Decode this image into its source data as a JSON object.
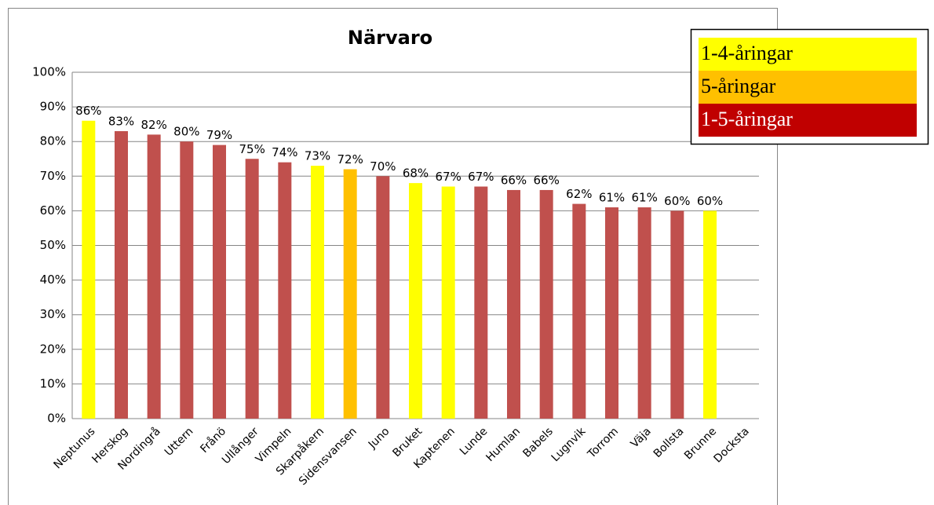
{
  "chart_data": {
    "type": "bar",
    "title": "Närvaro",
    "categories": [
      "Neptunus",
      "Herskog",
      "Nordingrå",
      "Uttern",
      "Frånö",
      "Ullånger",
      "Vimpeln",
      "Skarpåkern",
      "Sidensvansen",
      "Juno",
      "Bruket",
      "Kaptenen",
      "Lunde",
      "Humlan",
      "Babels",
      "Lugnvik",
      "Torrom",
      "Väja",
      "Bollsta",
      "Brunne",
      "Docksta"
    ],
    "values": [
      86,
      83,
      82,
      80,
      79,
      75,
      74,
      73,
      72,
      70,
      68,
      67,
      67,
      66,
      66,
      62,
      61,
      61,
      60,
      60,
      null
    ],
    "value_labels": [
      "86%",
      "83%",
      "82%",
      "80%",
      "79%",
      "75%",
      "74%",
      "73%",
      "72%",
      "70%",
      "68%",
      "67%",
      "67%",
      "66%",
      "66%",
      "62%",
      "61%",
      "61%",
      "60%",
      "60%",
      null
    ],
    "colors": [
      "#ffff00",
      "#c0504d",
      "#c0504d",
      "#c0504d",
      "#c0504d",
      "#c0504d",
      "#c0504d",
      "#ffff00",
      "#ffc000",
      "#c0504d",
      "#ffff00",
      "#ffff00",
      "#c0504d",
      "#c0504d",
      "#c0504d",
      "#c0504d",
      "#c0504d",
      "#c0504d",
      "#c0504d",
      "#ffff00",
      null
    ],
    "ylim": [
      0,
      100
    ],
    "yticks": [
      {
        "value": 0,
        "label": "0%"
      },
      {
        "value": 10,
        "label": "10%"
      },
      {
        "value": 20,
        "label": "20%"
      },
      {
        "value": 30,
        "label": "30%"
      },
      {
        "value": 40,
        "label": "40%"
      },
      {
        "value": 50,
        "label": "50%"
      },
      {
        "value": 60,
        "label": "60%"
      },
      {
        "value": 70,
        "label": "70%"
      },
      {
        "value": 80,
        "label": "80%"
      },
      {
        "value": 90,
        "label": "90%"
      },
      {
        "value": 100,
        "label": "100%"
      }
    ],
    "grid": true,
    "legend": [
      {
        "label": "1-4-åringar",
        "color": "#ffff00",
        "text_color": "#000000"
      },
      {
        "label": "5-åringar",
        "color": "#ffc000",
        "text_color": "#000000"
      },
      {
        "label": "1-5-åringar",
        "color": "#c00000",
        "text_color": "#ffffff"
      }
    ]
  }
}
